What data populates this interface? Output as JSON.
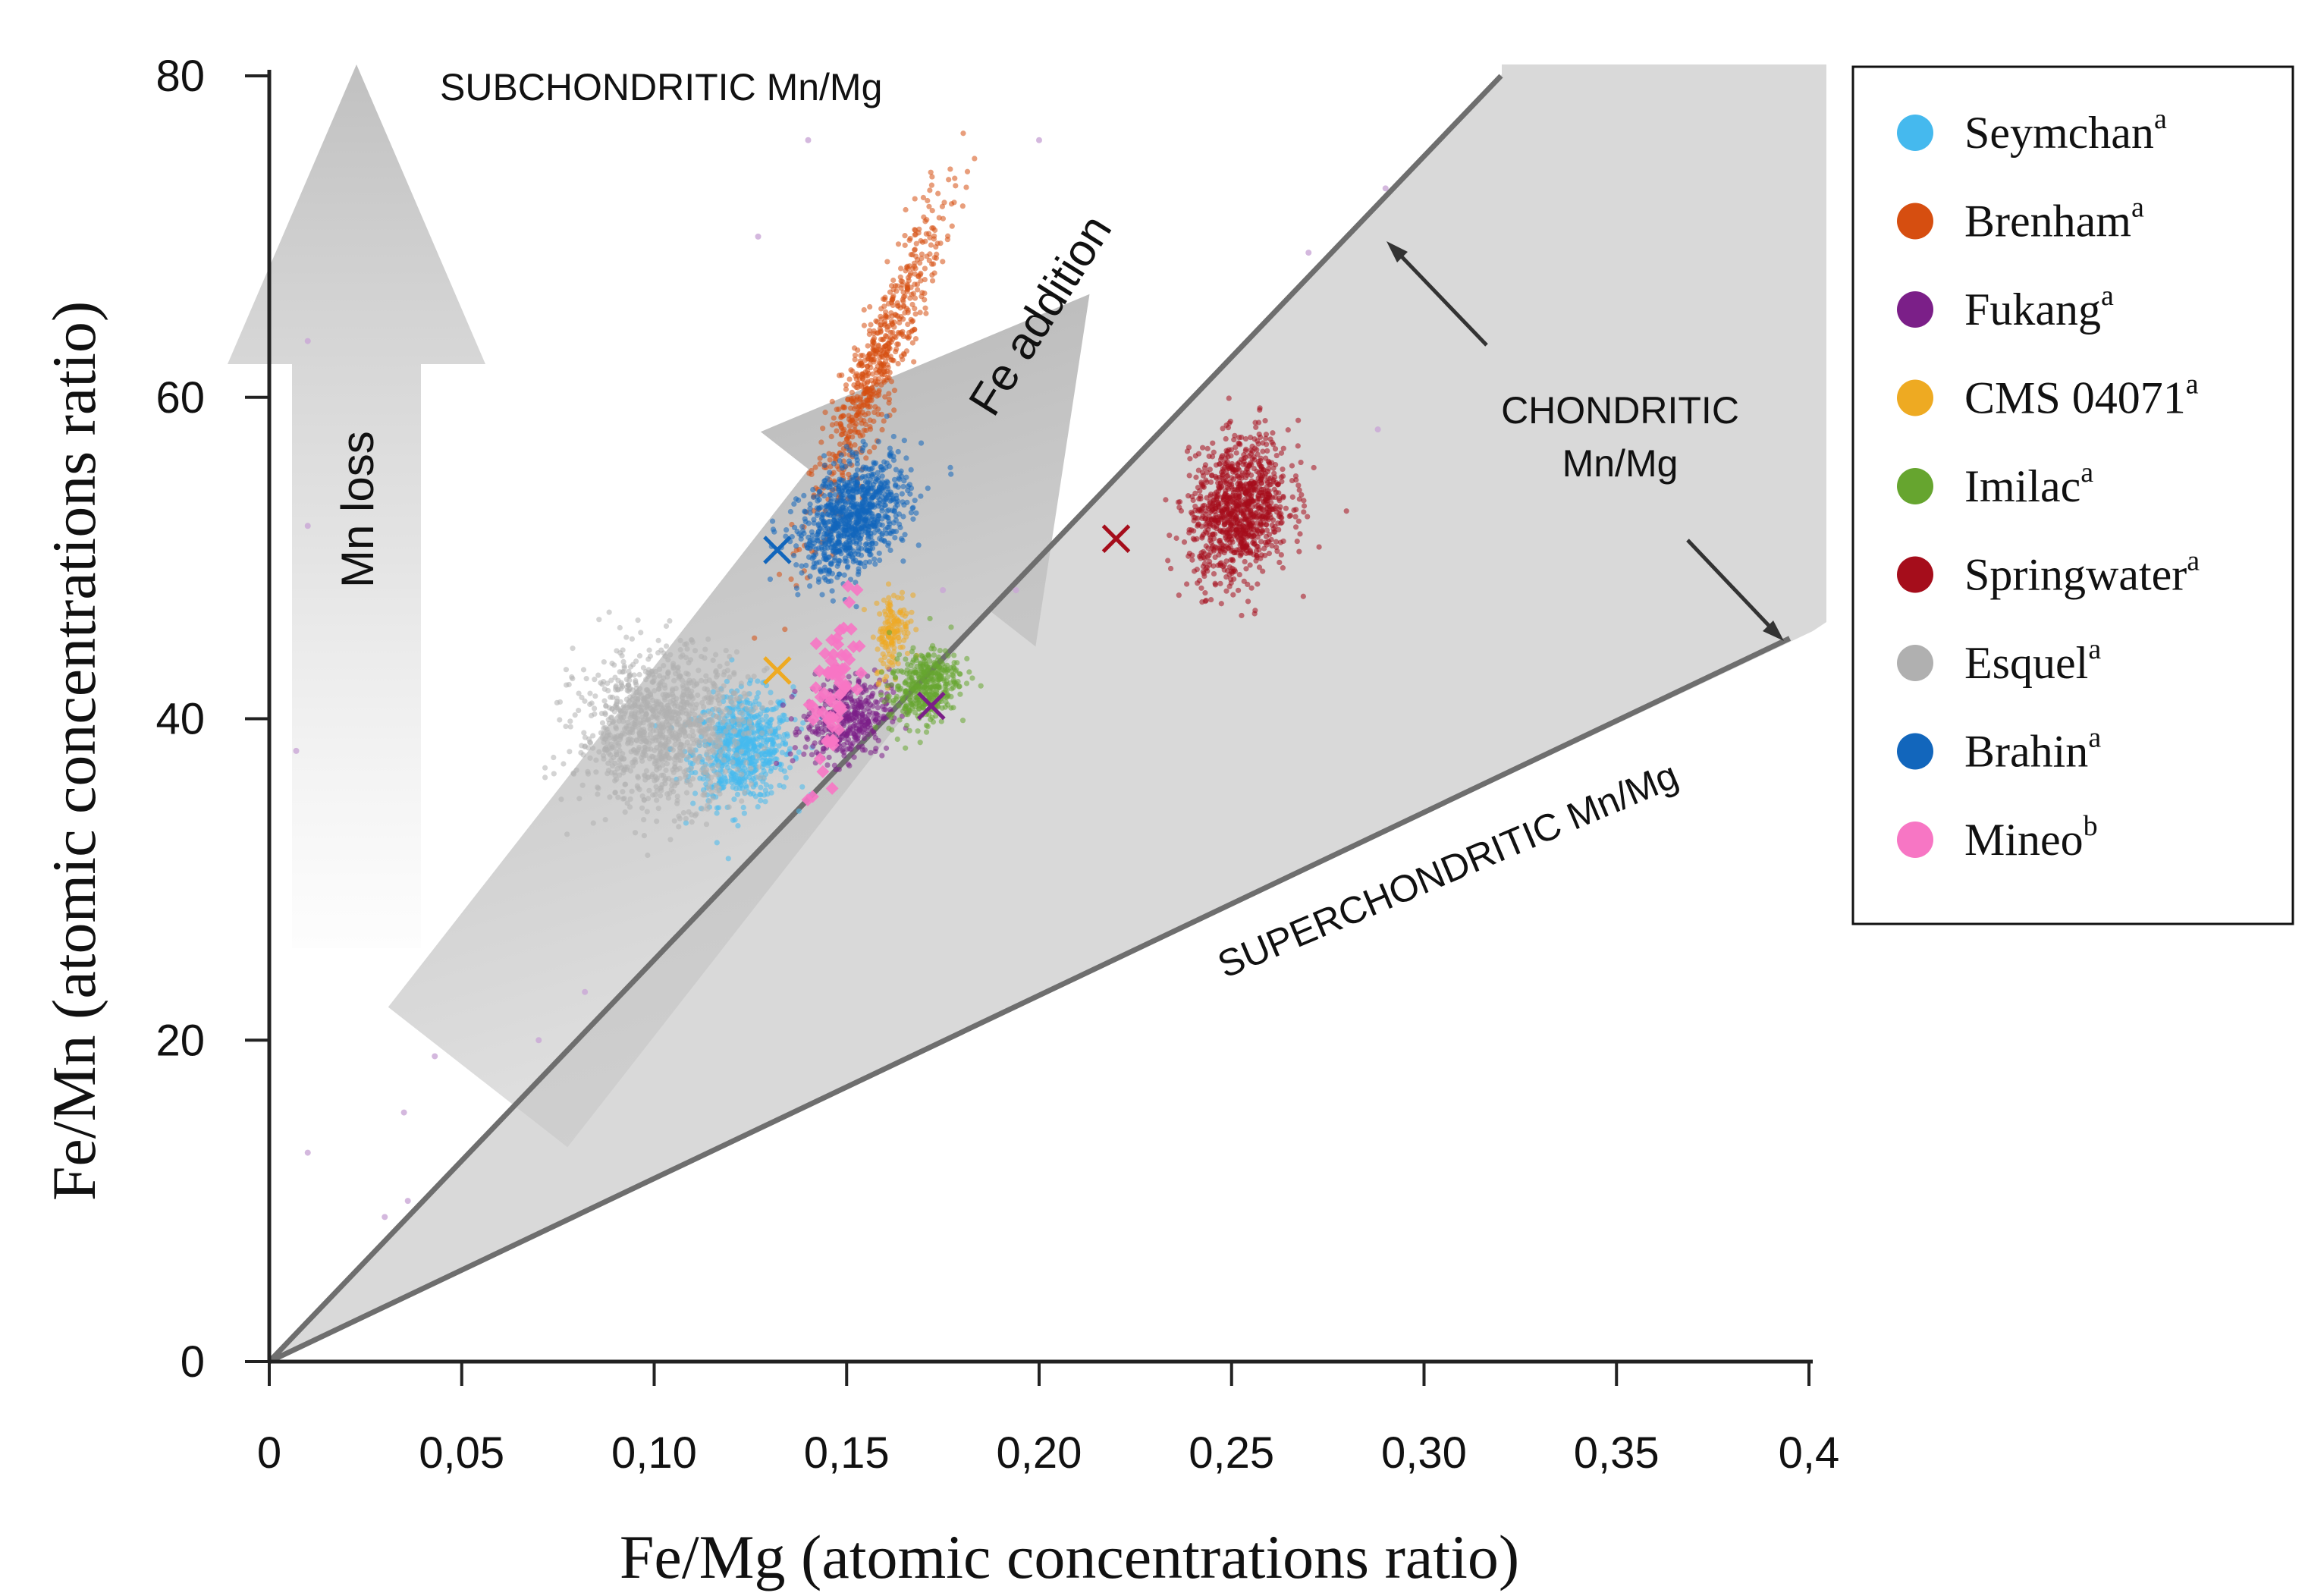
{
  "chart_data": {
    "type": "scatter",
    "title": "",
    "xlabel": "Fe/Mg (atomic concentrations ratio)",
    "ylabel": "Fe/Mn (atomic concentrations ratio)",
    "xlim": [
      0,
      0.4
    ],
    "ylim": [
      0,
      80
    ],
    "x_ticks": [
      "0",
      "0,05",
      "0,10",
      "0,15",
      "0,20",
      "0,25",
      "0,30",
      "0,35",
      "0,4"
    ],
    "x_tick_values": [
      0,
      0.05,
      0.1,
      0.15,
      0.2,
      0.25,
      0.3,
      0.35,
      0.4
    ],
    "y_ticks": [
      "0",
      "20",
      "40",
      "60",
      "80"
    ],
    "y_tick_values": [
      0,
      20,
      40,
      60,
      80
    ],
    "grid": false,
    "legend_position": "right",
    "chondritic_band": {
      "upper_line": [
        [
          0,
          0
        ],
        [
          0.32,
          80
        ]
      ],
      "lower_line": [
        [
          0,
          0
        ],
        [
          0.395,
          45
        ]
      ]
    },
    "annotations": {
      "subchondritic": "SUBCHONDRITIC  Mn/Mg",
      "chondritic_line1": "CHONDRITIC",
      "chondritic_line2": "Mn/Mg",
      "superchondritic": "SUPERCHONDRITIC  Mn/Mg",
      "mn_loss": "Mn loss",
      "fe_addition": "Fe addition"
    },
    "series": [
      {
        "name": "Seymchan",
        "sup": "a",
        "color": "#45b9ee",
        "x": 0.123,
        "y": 38.2,
        "sx": 0.0065,
        "sy": 1.7,
        "rho": 0.1,
        "n": 700
      },
      {
        "name": "Brenham",
        "sup": "a",
        "color": "#d64e10",
        "x": 0.158,
        "y": 62.0,
        "sx": 0.0085,
        "sy": 5.0,
        "rho": 0.92,
        "n": 650
      },
      {
        "name": "Fukang",
        "sup": "a",
        "color": "#7b1f88",
        "x": 0.15,
        "y": 40.0,
        "sx": 0.0055,
        "sy": 1.3,
        "rho": 0.2,
        "n": 400
      },
      {
        "name": "CMS 04071",
        "sup": "a",
        "color": "#eeaa22",
        "x": 0.162,
        "y": 45.5,
        "sx": 0.0022,
        "sy": 1.3,
        "rho": 0.3,
        "n": 150
      },
      {
        "name": "Imilac",
        "sup": "a",
        "color": "#66a52f",
        "x": 0.17,
        "y": 42.0,
        "sx": 0.0045,
        "sy": 1.2,
        "rho": 0.3,
        "n": 400
      },
      {
        "name": "Springwater",
        "sup": "a",
        "color": "#a50d1b",
        "x": 0.252,
        "y": 53.0,
        "sx": 0.0065,
        "sy": 2.2,
        "rho": 0.2,
        "n": 1000
      },
      {
        "name": "Esquel",
        "sup": "a",
        "color": "#b0b0b0",
        "x": 0.102,
        "y": 39.5,
        "sx": 0.011,
        "sy": 2.4,
        "rho": 0.05,
        "n": 1100
      },
      {
        "name": "Brahin",
        "sup": "a",
        "color": "#1266bc",
        "x": 0.152,
        "y": 52.5,
        "sx": 0.007,
        "sy": 1.8,
        "rho": 0.4,
        "n": 900
      },
      {
        "name": "Mineo",
        "sup": "b",
        "color": "#f776c4",
        "x": 0.146,
        "y": 41.5,
        "sx": 0.0035,
        "sy": 2.6,
        "rho": 0.6,
        "n": 70
      }
    ],
    "reference_markers": [
      {
        "x": 0.132,
        "y": 50.5,
        "color": "#1266bc"
      },
      {
        "x": 0.132,
        "y": 43.0,
        "color": "#eeaa22"
      },
      {
        "x": 0.172,
        "y": 40.8,
        "color": "#7b1f88"
      },
      {
        "x": 0.22,
        "y": 51.2,
        "color": "#a50d1b"
      }
    ],
    "outliers": [
      [
        0.14,
        76
      ],
      [
        0.127,
        70
      ],
      [
        0.01,
        63.5
      ],
      [
        0.01,
        52
      ],
      [
        0.007,
        38
      ],
      [
        0.07,
        20
      ],
      [
        0.043,
        19
      ],
      [
        0.01,
        13
      ],
      [
        0.03,
        9
      ],
      [
        0.036,
        10
      ],
      [
        0.082,
        23
      ],
      [
        0.035,
        15.5
      ],
      [
        0.27,
        69
      ],
      [
        0.29,
        73
      ],
      [
        0.288,
        58
      ],
      [
        0.194,
        48
      ],
      [
        0.175,
        48
      ],
      [
        0.2,
        76
      ]
    ]
  }
}
